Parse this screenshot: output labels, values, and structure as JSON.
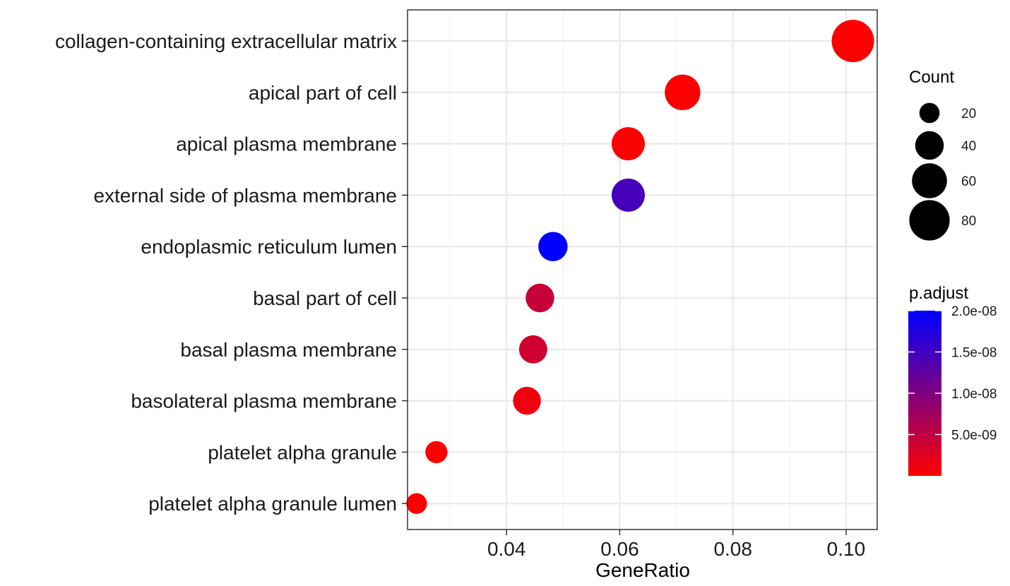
{
  "chart_data": {
    "type": "scatter",
    "xlabel": "GeneRatio",
    "ylabel": "",
    "xlim": [
      0.0225,
      0.1055
    ],
    "x_ticks": [
      0.04,
      0.06,
      0.08,
      0.1
    ],
    "x_tick_labels": [
      "0.04",
      "0.06",
      "0.08",
      "0.10"
    ],
    "grid": true,
    "points": [
      {
        "term": "collagen-containing extracellular matrix",
        "gene_ratio": 0.1012,
        "count": 88,
        "p_adjust": 0.0
      },
      {
        "term": "apical part of cell",
        "gene_ratio": 0.0711,
        "count": 62,
        "p_adjust": 0.0
      },
      {
        "term": "apical plasma membrane",
        "gene_ratio": 0.0615,
        "count": 54,
        "p_adjust": 0.0
      },
      {
        "term": "external side of plasma membrane",
        "gene_ratio": 0.0615,
        "count": 54,
        "p_adjust": 1.45e-08
      },
      {
        "term": "endoplasmic reticulum lumen",
        "gene_ratio": 0.0482,
        "count": 42,
        "p_adjust": 2e-08
      },
      {
        "term": "basal part of cell",
        "gene_ratio": 0.0459,
        "count": 40,
        "p_adjust": 4.5e-09
      },
      {
        "term": "basal plasma membrane",
        "gene_ratio": 0.0447,
        "count": 39,
        "p_adjust": 3.8e-09
      },
      {
        "term": "basolateral plasma membrane",
        "gene_ratio": 0.0436,
        "count": 38,
        "p_adjust": 1.2e-09
      },
      {
        "term": "platelet alpha granule",
        "gene_ratio": 0.0276,
        "count": 24,
        "p_adjust": 0.0
      },
      {
        "term": "platelet alpha granule lumen",
        "gene_ratio": 0.0241,
        "count": 21,
        "p_adjust": 0.0
      }
    ],
    "size_legend": {
      "title": "Count",
      "values": [
        20,
        40,
        60,
        80
      ],
      "labels": [
        "20",
        "40",
        "60",
        "80"
      ]
    },
    "color_legend": {
      "title": "p.adjust",
      "min": 0,
      "max": 2e-08,
      "low_color": "#ff0000",
      "high_color": "#0000ff",
      "ticks": [
        5e-09,
        1e-08,
        1.5e-08,
        2e-08
      ],
      "tick_labels": [
        "5.0e-09",
        "1.0e-08",
        "1.5e-08",
        "2.0e-08"
      ]
    }
  }
}
